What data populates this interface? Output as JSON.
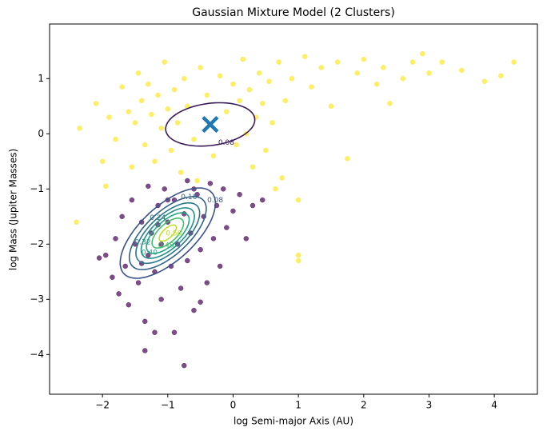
{
  "chart_data": {
    "type": "scatter",
    "title": "Gaussian Mixture Model (2 Clusters)",
    "xlabel": "log Semi-major Axis (AU)",
    "ylabel": "log Mass (Jupiter Masses)",
    "xlim": [
      -2.81,
      4.66
    ],
    "ylim": [
      -4.72,
      1.99
    ],
    "xticks": [
      {
        "value": -2,
        "label": "−2"
      },
      {
        "value": -1,
        "label": "−1"
      },
      0,
      1,
      2,
      3,
      4
    ],
    "yticks": [
      {
        "value": -4,
        "label": "−4"
      },
      {
        "value": -3,
        "label": "−3"
      },
      {
        "value": -2,
        "label": "−2"
      },
      {
        "value": -1,
        "label": "−1"
      },
      0,
      1
    ],
    "series": [
      {
        "color": "#fde725",
        "x": [
          -2.35,
          -2.1,
          -2.0,
          -1.9,
          -1.8,
          -1.7,
          -1.6,
          -1.55,
          -1.5,
          -1.45,
          -1.4,
          -1.35,
          -1.3,
          -1.25,
          -1.2,
          -1.15,
          -1.1,
          -1.05,
          -1.0,
          -0.95,
          -0.9,
          -0.85,
          -0.8,
          -0.75,
          -0.7,
          -0.6,
          -0.5,
          -0.4,
          -0.3,
          -0.2,
          -0.1,
          0.0,
          0.05,
          0.1,
          0.15,
          0.2,
          0.25,
          0.3,
          0.35,
          0.4,
          0.45,
          0.5,
          0.55,
          0.6,
          0.7,
          0.75,
          0.8,
          0.9,
          1.0,
          1.0,
          1.0,
          1.1,
          1.2,
          1.35,
          1.5,
          1.6,
          1.75,
          1.9,
          2.0,
          2.2,
          2.3,
          2.4,
          2.6,
          2.75,
          2.9,
          3.0,
          3.2,
          3.5,
          3.85,
          4.1,
          4.3,
          -2.4,
          -1.95,
          -0.55,
          0.65
        ],
        "values": [
          0.1,
          0.55,
          -0.5,
          0.3,
          -0.1,
          0.85,
          0.4,
          -0.6,
          0.2,
          1.1,
          0.6,
          -0.2,
          0.9,
          0.35,
          -0.5,
          0.7,
          0.1,
          1.3,
          0.45,
          -0.3,
          0.8,
          0.2,
          -0.7,
          1.0,
          0.5,
          -0.1,
          1.2,
          0.7,
          -0.4,
          1.05,
          0.4,
          0.9,
          -0.2,
          0.6,
          1.35,
          0.0,
          0.8,
          -0.6,
          0.3,
          1.1,
          0.55,
          -0.3,
          0.95,
          0.2,
          1.3,
          -0.8,
          0.6,
          1.0,
          -1.2,
          -2.3,
          -2.2,
          1.4,
          0.85,
          1.2,
          0.5,
          1.3,
          -0.45,
          1.1,
          1.35,
          0.9,
          1.2,
          0.55,
          1.0,
          1.3,
          1.45,
          1.1,
          1.3,
          1.15,
          0.95,
          1.05,
          1.3,
          -1.6,
          -0.95,
          -0.85,
          -1.0
        ]
      },
      {
        "color": "#440154",
        "x": [
          -1.95,
          -1.85,
          -1.8,
          -1.75,
          -1.7,
          -1.65,
          -1.6,
          -1.55,
          -1.5,
          -1.45,
          -1.4,
          -1.35,
          -1.3,
          -1.3,
          -1.25,
          -1.2,
          -1.15,
          -1.1,
          -1.1,
          -1.05,
          -1.0,
          -0.95,
          -0.9,
          -0.9,
          -0.85,
          -0.8,
          -0.75,
          -0.7,
          -0.7,
          -0.65,
          -0.6,
          -0.55,
          -0.5,
          -0.45,
          -0.4,
          -0.35,
          -0.3,
          -0.25,
          -0.2,
          -0.15,
          -0.1,
          0.0,
          0.1,
          0.2,
          0.3,
          0.45,
          -0.75,
          -1.35,
          -1.2,
          -0.5,
          -2.05,
          -1.0,
          -0.6,
          -1.4,
          -1.15
        ],
        "values": [
          -2.2,
          -2.6,
          -1.9,
          -2.9,
          -1.5,
          -2.4,
          -3.1,
          -1.2,
          -2.0,
          -2.7,
          -1.6,
          -3.4,
          -2.2,
          -0.95,
          -1.8,
          -2.5,
          -1.3,
          -3.0,
          -2.0,
          -1.0,
          -1.6,
          -2.4,
          -3.6,
          -1.2,
          -2.0,
          -2.8,
          -1.45,
          -0.85,
          -2.3,
          -1.8,
          -3.2,
          -1.1,
          -2.1,
          -1.5,
          -2.7,
          -0.9,
          -1.9,
          -1.3,
          -2.4,
          -1.0,
          -1.7,
          -1.4,
          -1.1,
          -1.9,
          -1.3,
          -1.2,
          -4.2,
          -3.93,
          -3.6,
          -3.05,
          -2.25,
          -1.2,
          -1.0,
          -2.35,
          -1.65
        ]
      }
    ],
    "contours": [
      {
        "level": 0.08,
        "label": "0.08",
        "cx": -0.35,
        "cy": 0.17,
        "rx": 0.69,
        "ry": 0.38,
        "angle": 10,
        "color": "#3b1c5a"
      },
      {
        "level": 0.08,
        "label": "0.08",
        "cx": -1.0,
        "cy": -1.8,
        "rx": 1.0,
        "ry": 0.45,
        "angle": 50,
        "color": "#3b528b"
      },
      {
        "level": 0.16,
        "label": "0.16",
        "cx": -1.0,
        "cy": -1.8,
        "rx": 0.81,
        "ry": 0.36,
        "angle": 50,
        "color": "#33638d"
      },
      {
        "level": 0.24,
        "label": "0.24",
        "cx": -1.0,
        "cy": -1.8,
        "rx": 0.67,
        "ry": 0.3,
        "angle": 50,
        "color": "#2a788e"
      },
      {
        "level": 0.32,
        "label": "0.32",
        "cx": -1.0,
        "cy": -1.8,
        "rx": 0.56,
        "ry": 0.25,
        "angle": 50,
        "color": "#21918c"
      },
      {
        "level": 0.4,
        "label": "0.40",
        "cx": -1.0,
        "cy": -1.8,
        "rx": 0.45,
        "ry": 0.2,
        "angle": 50,
        "color": "#22a884"
      },
      {
        "level": 0.48,
        "label": "0.48",
        "cx": -1.0,
        "cy": -1.8,
        "rx": 0.33,
        "ry": 0.15,
        "angle": 50,
        "color": "#44bf70"
      },
      {
        "level": 0.56,
        "label": "0.56",
        "cx": -1.0,
        "cy": -1.8,
        "rx": 0.18,
        "ry": 0.08,
        "angle": 50,
        "color": "#bddf26"
      }
    ],
    "centers": [
      {
        "x": -0.35,
        "y": 0.17,
        "color": "#1f77b4"
      }
    ]
  }
}
